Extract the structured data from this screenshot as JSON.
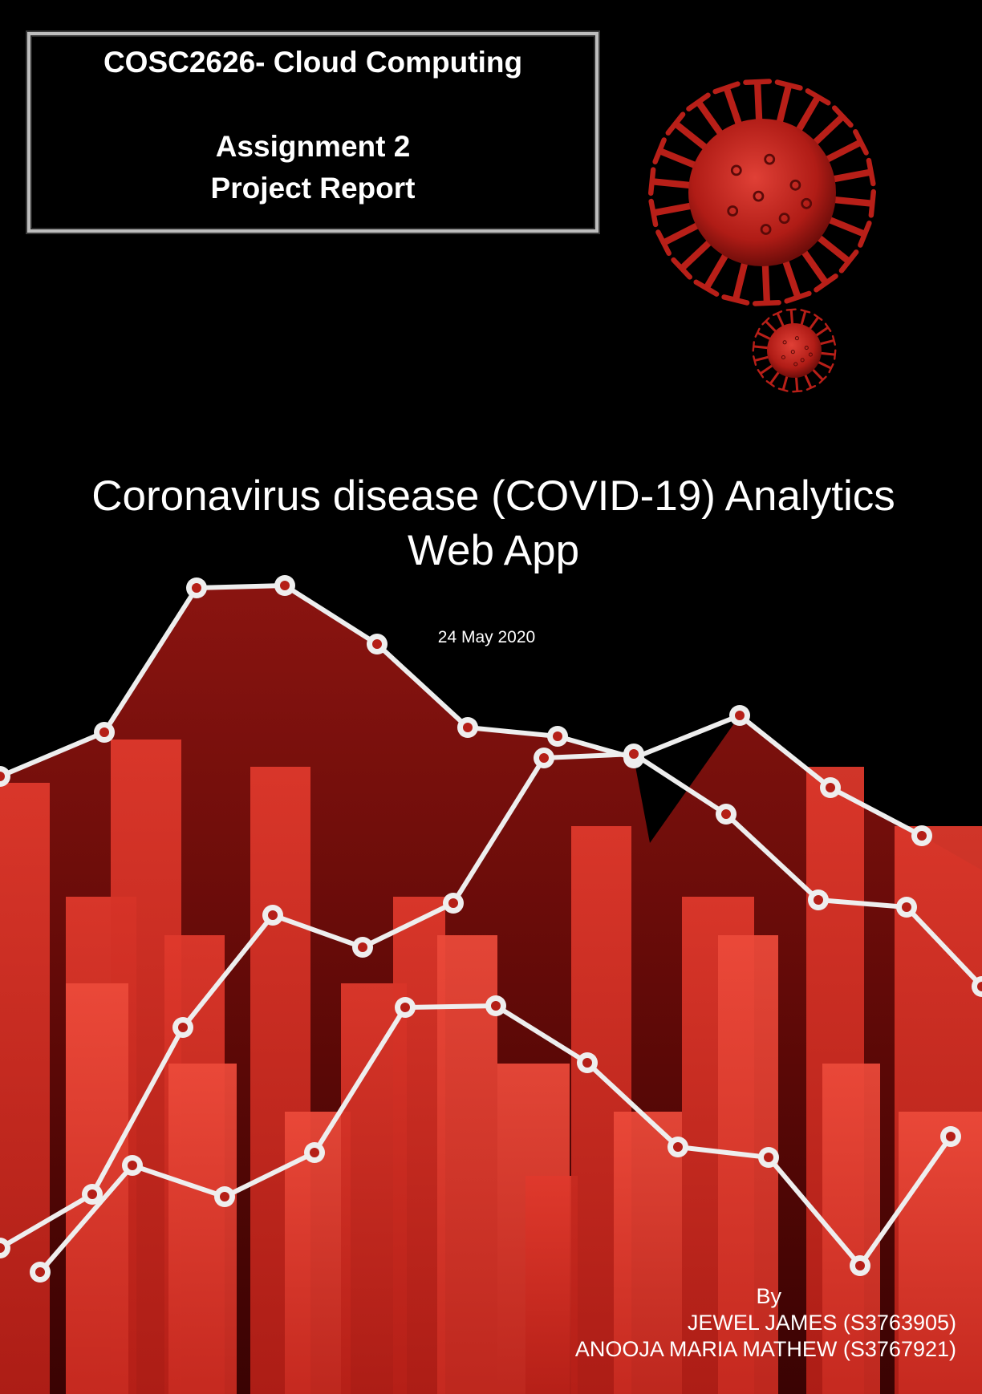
{
  "cover": {
    "course_title": "COSC2626- Cloud Computing",
    "assignment": "Assignment 2",
    "report_type": "Project Report",
    "main_title_line1": "Coronavirus disease (COVID-19) Analytics",
    "main_title_line2": "Web App",
    "date": "24 May 2020",
    "by_label": "By",
    "author1": "JEWEL JAMES (S3763905)",
    "author2": "ANOOJA MARIA MATHEW (S3767921)"
  },
  "colors": {
    "background": "#000000",
    "accent_red": "#d42a1f",
    "virus_red": "#b81f18",
    "line_white": "#eeeeee"
  },
  "illustration": {
    "icons": [
      "virus-icon",
      "virus-icon-small"
    ],
    "description_type": "decorative chart graphic"
  }
}
